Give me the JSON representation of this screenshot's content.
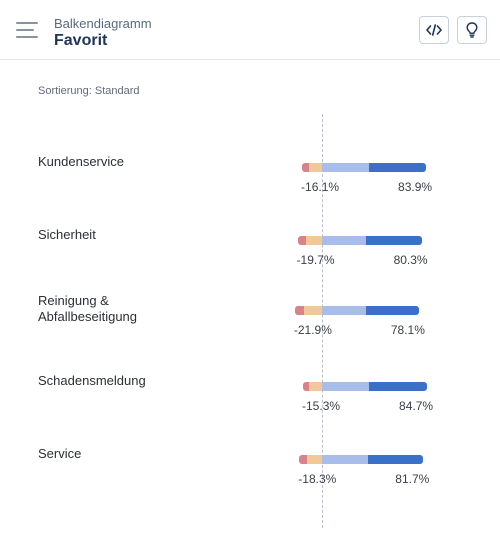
{
  "header": {
    "subtitle": "Balkendiagramm",
    "title": "Favorit",
    "menu_icon": "hamburger-menu-icon",
    "code_button_icon": "code-icon",
    "hint_button_icon": "lightbulb-icon"
  },
  "sort_label": "Sortierung: Standard",
  "colors": {
    "strong_negative": "#d9828a",
    "weak_negative": "#f1c998",
    "weak_positive": "#a8bdea",
    "strong_positive": "#3a70c8"
  },
  "chart_data": {
    "type": "bar",
    "orientation": "horizontal-diverging",
    "categories": [
      "Kundenservice",
      "Sicherheit",
      "Reinigung & Abfallbeseitigung",
      "Schadensmeldung",
      "Service"
    ],
    "negative_labels": [
      "-16.1%",
      "-19.7%",
      "-21.9%",
      "-15.3%",
      "-18.3%"
    ],
    "positive_labels": [
      "83.9%",
      "80.3%",
      "78.1%",
      "84.7%",
      "81.7%"
    ],
    "negative_values": [
      -16.1,
      -19.7,
      -21.9,
      -15.3,
      -18.3
    ],
    "positive_values": [
      83.9,
      80.3,
      78.1,
      84.7,
      81.7
    ],
    "strong_negative_values": [
      -5.8,
      -6.7,
      -7.0,
      -5.0,
      -6.3
    ],
    "strong_positive_values": [
      46.0,
      45.0,
      43.0,
      47.0,
      45.0
    ]
  }
}
